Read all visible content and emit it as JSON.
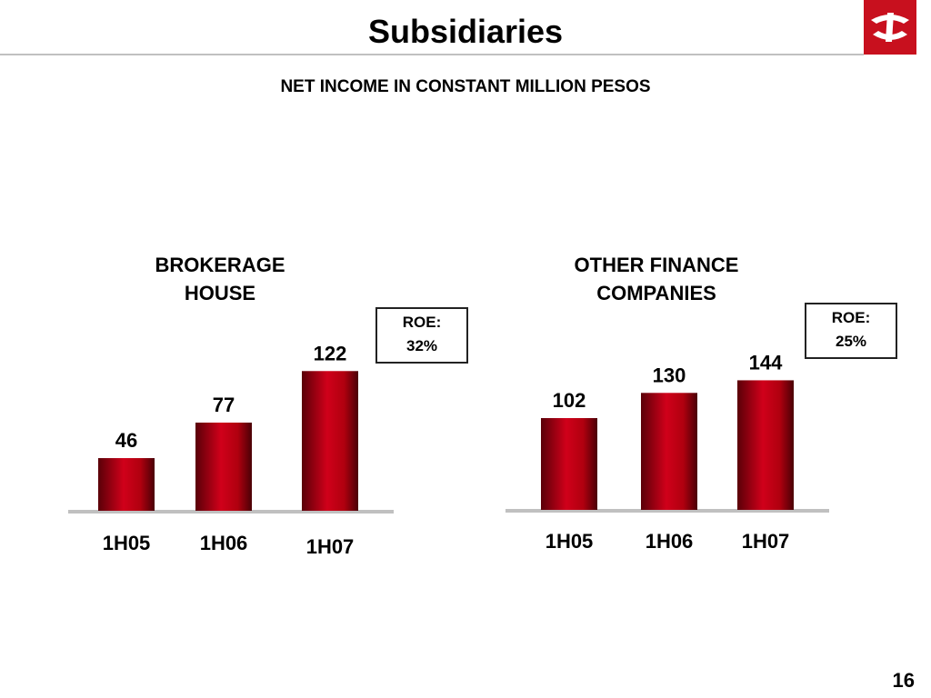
{
  "header": {
    "title": "Subsidiaries",
    "subtitle": "NET INCOME IN CONSTANT MILLION PESOS"
  },
  "colors": {
    "bar_dark": "#5a0008",
    "bar_mid": "#d0001a",
    "bar_light": "#e01a2a",
    "logo_red": "#c8101e",
    "baseline": "#c0c0c0"
  },
  "chart_data": [
    {
      "type": "bar",
      "title_lines": [
        "BROKERAGE",
        "HOUSE"
      ],
      "categories": [
        "1H05",
        "1H06",
        "1H07"
      ],
      "values": [
        46,
        77,
        122
      ],
      "annotation": {
        "lines": [
          "ROE:",
          "32%"
        ]
      },
      "ylim": [
        0,
        150
      ]
    },
    {
      "type": "bar",
      "title_lines": [
        "OTHER FINANCE",
        "COMPANIES"
      ],
      "categories": [
        "1H05",
        "1H06",
        "1H07"
      ],
      "values": [
        102,
        130,
        144
      ],
      "annotation": {
        "lines": [
          "ROE:",
          "25%"
        ]
      },
      "ylim": [
        0,
        150
      ]
    }
  ],
  "footer": {
    "page_number": "16"
  }
}
